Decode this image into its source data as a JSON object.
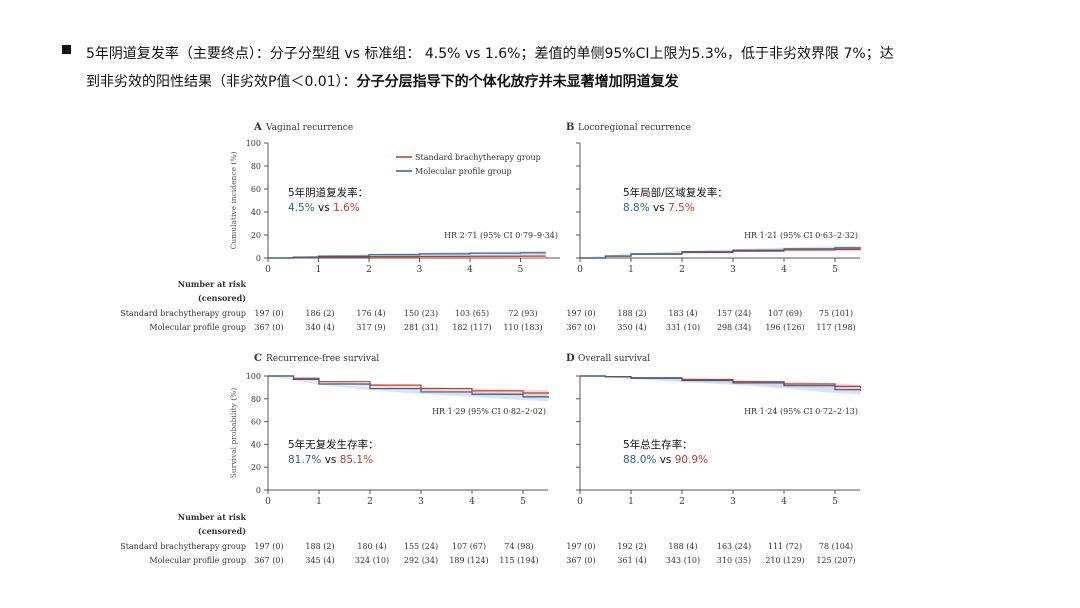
{
  "bullet": {
    "part1": "5年阴道复发率（主要终点）：分子分型组 vs 标准组： 4.5% vs 1.6%；差值的单侧95%CI上限为5.3%，低于非劣效界限 7%；达",
    "part2": "到非劣效的阳性结果（非劣效P值＜0.01）：",
    "bold": "分子分层指导下的个体化放疗并未显著增加阴道复发"
  },
  "colors": {
    "standard": "#c0392b",
    "molecular": "#2c5f8a",
    "std_ci": "#f3c6c2",
    "mol_ci": "#c9d8ee"
  },
  "legend": {
    "standard": "Standard brachytherapy group",
    "molecular": "Molecular profile group"
  },
  "risk": {
    "header1": "Number at risk",
    "header2": "(censored)",
    "standard_label": "Standard brachytherapy group",
    "molecular_label": "Molecular profile group"
  },
  "chart_data": [
    {
      "id": "A",
      "letter": "A",
      "type": "line",
      "title": "Vaginal recurrence",
      "xlabel": "",
      "ylabel": "Cumulative incidence (%)",
      "xlim": [
        0,
        5.5
      ],
      "ylim": [
        0,
        100
      ],
      "xticks": [
        "0",
        "1",
        "2",
        "3",
        "4",
        "5"
      ],
      "yticks": [
        "0",
        "20",
        "40",
        "60",
        "80",
        "100"
      ],
      "hr": "HR 2·71 (95% CI 0·79–9·34)",
      "ann_title": "5年阴道复发率：",
      "ann_mol": "4.5%",
      "ann_vs": "vs",
      "ann_std": "1.6%",
      "series": [
        {
          "name": "Standard brachytherapy group",
          "x": [
            0,
            0.5,
            1,
            2,
            3,
            4,
            5,
            5.5
          ],
          "y": [
            0,
            0.3,
            0.8,
            1.2,
            1.4,
            1.5,
            1.6,
            1.6
          ]
        },
        {
          "name": "Molecular profile group",
          "x": [
            0,
            0.5,
            1,
            2,
            3,
            4,
            5,
            5.5
          ],
          "y": [
            0,
            0.8,
            1.6,
            2.8,
            3.6,
            4.2,
            4.5,
            4.6
          ]
        }
      ],
      "risk_standard": [
        "197 (0)",
        "186 (2)",
        "176 (4)",
        "150 (23)",
        "103 (65)",
        "72 (93)"
      ],
      "risk_molecular": [
        "367 (0)",
        "340 (4)",
        "317 (9)",
        "281 (31)",
        "182 (117)",
        "110 (183)"
      ]
    },
    {
      "id": "B",
      "letter": "B",
      "type": "line",
      "title": "Locoregional recurrence",
      "xlabel": "",
      "ylabel": "",
      "xlim": [
        0,
        5.5
      ],
      "ylim": [
        0,
        100
      ],
      "xticks": [
        "0",
        "1",
        "2",
        "3",
        "4",
        "5"
      ],
      "yticks": [],
      "hr": "HR 1·21 (95% CI 0·63–2·32)",
      "ann_title": "5年局部/区域复发率：",
      "ann_mol": "8.8%",
      "ann_vs": "vs",
      "ann_std": "7.5%",
      "series": [
        {
          "name": "Standard brachytherapy group",
          "x": [
            0,
            0.5,
            1,
            2,
            3,
            4,
            5,
            5.5
          ],
          "y": [
            0,
            1.5,
            3.2,
            4.8,
            6.0,
            7.0,
            7.5,
            7.6
          ]
        },
        {
          "name": "Molecular profile group",
          "x": [
            0,
            0.5,
            1,
            2,
            3,
            4,
            5,
            5.5
          ],
          "y": [
            0,
            1.8,
            3.6,
            5.5,
            6.8,
            8.0,
            8.8,
            9.0
          ]
        }
      ],
      "risk_standard": [
        "197 (0)",
        "188 (2)",
        "183 (4)",
        "157 (24)",
        "107 (69)",
        "75 (101)"
      ],
      "risk_molecular": [
        "367 (0)",
        "350 (4)",
        "331 (10)",
        "298 (34)",
        "196 (126)",
        "117 (198)"
      ]
    },
    {
      "id": "C",
      "letter": "C",
      "type": "line",
      "title": "Recurrence-free survival",
      "xlabel": "",
      "ylabel": "Survival probability (%)",
      "xlim": [
        0,
        5.5
      ],
      "ylim": [
        0,
        100
      ],
      "xticks": [
        "0",
        "1",
        "2",
        "3",
        "4",
        "5"
      ],
      "yticks": [
        "0",
        "20",
        "40",
        "60",
        "80",
        "100"
      ],
      "hr": "HR 1·29 (95% CI 0·82–2·02)",
      "ann_title": "5年无复发生存率：",
      "ann_mol": "81.7%",
      "ann_vs": "vs",
      "ann_std": "85.1%",
      "series": [
        {
          "name": "Standard brachytherapy group",
          "x": [
            0,
            0.5,
            1,
            2,
            3,
            4,
            5,
            5.5
          ],
          "y": [
            100,
            98,
            95,
            92,
            89,
            87,
            85.1,
            84.5
          ]
        },
        {
          "name": "Molecular profile group",
          "x": [
            0,
            0.5,
            1,
            2,
            3,
            4,
            5,
            5.5
          ],
          "y": [
            100,
            97,
            93,
            89,
            86,
            84,
            81.7,
            81
          ]
        }
      ],
      "risk_standard": [
        "197 (0)",
        "188 (2)",
        "180 (4)",
        "155 (24)",
        "107 (67)",
        "74 (98)"
      ],
      "risk_molecular": [
        "367 (0)",
        "345 (4)",
        "324 (10)",
        "292 (34)",
        "189 (124)",
        "115 (194)"
      ]
    },
    {
      "id": "D",
      "letter": "D",
      "type": "line",
      "title": "Overall survival",
      "xlabel": "",
      "ylabel": "",
      "xlim": [
        0,
        5.5
      ],
      "ylim": [
        0,
        100
      ],
      "xticks": [
        "0",
        "1",
        "2",
        "3",
        "4",
        "5"
      ],
      "yticks": [],
      "hr": "HR 1·24 (95% CI 0·72–2·13)",
      "ann_title": "5年总生存率：",
      "ann_mol": "88.0%",
      "ann_vs": "vs",
      "ann_std": "90.9%",
      "series": [
        {
          "name": "Standard brachytherapy group",
          "x": [
            0,
            0.5,
            1,
            2,
            3,
            4,
            5,
            5.5
          ],
          "y": [
            100,
            99.5,
            98.5,
            97,
            95,
            93,
            90.9,
            89
          ]
        },
        {
          "name": "Molecular profile group",
          "x": [
            0,
            0.5,
            1,
            2,
            3,
            4,
            5,
            5.5
          ],
          "y": [
            100,
            99.3,
            98,
            96,
            94,
            91.5,
            88.0,
            87
          ]
        }
      ],
      "risk_standard": [
        "197 (0)",
        "192 (2)",
        "188 (4)",
        "163 (24)",
        "111 (72)",
        "78 (104)"
      ],
      "risk_molecular": [
        "367 (0)",
        "361 (4)",
        "343 (10)",
        "310 (35)",
        "210 (129)",
        "125 (207)"
      ]
    }
  ]
}
